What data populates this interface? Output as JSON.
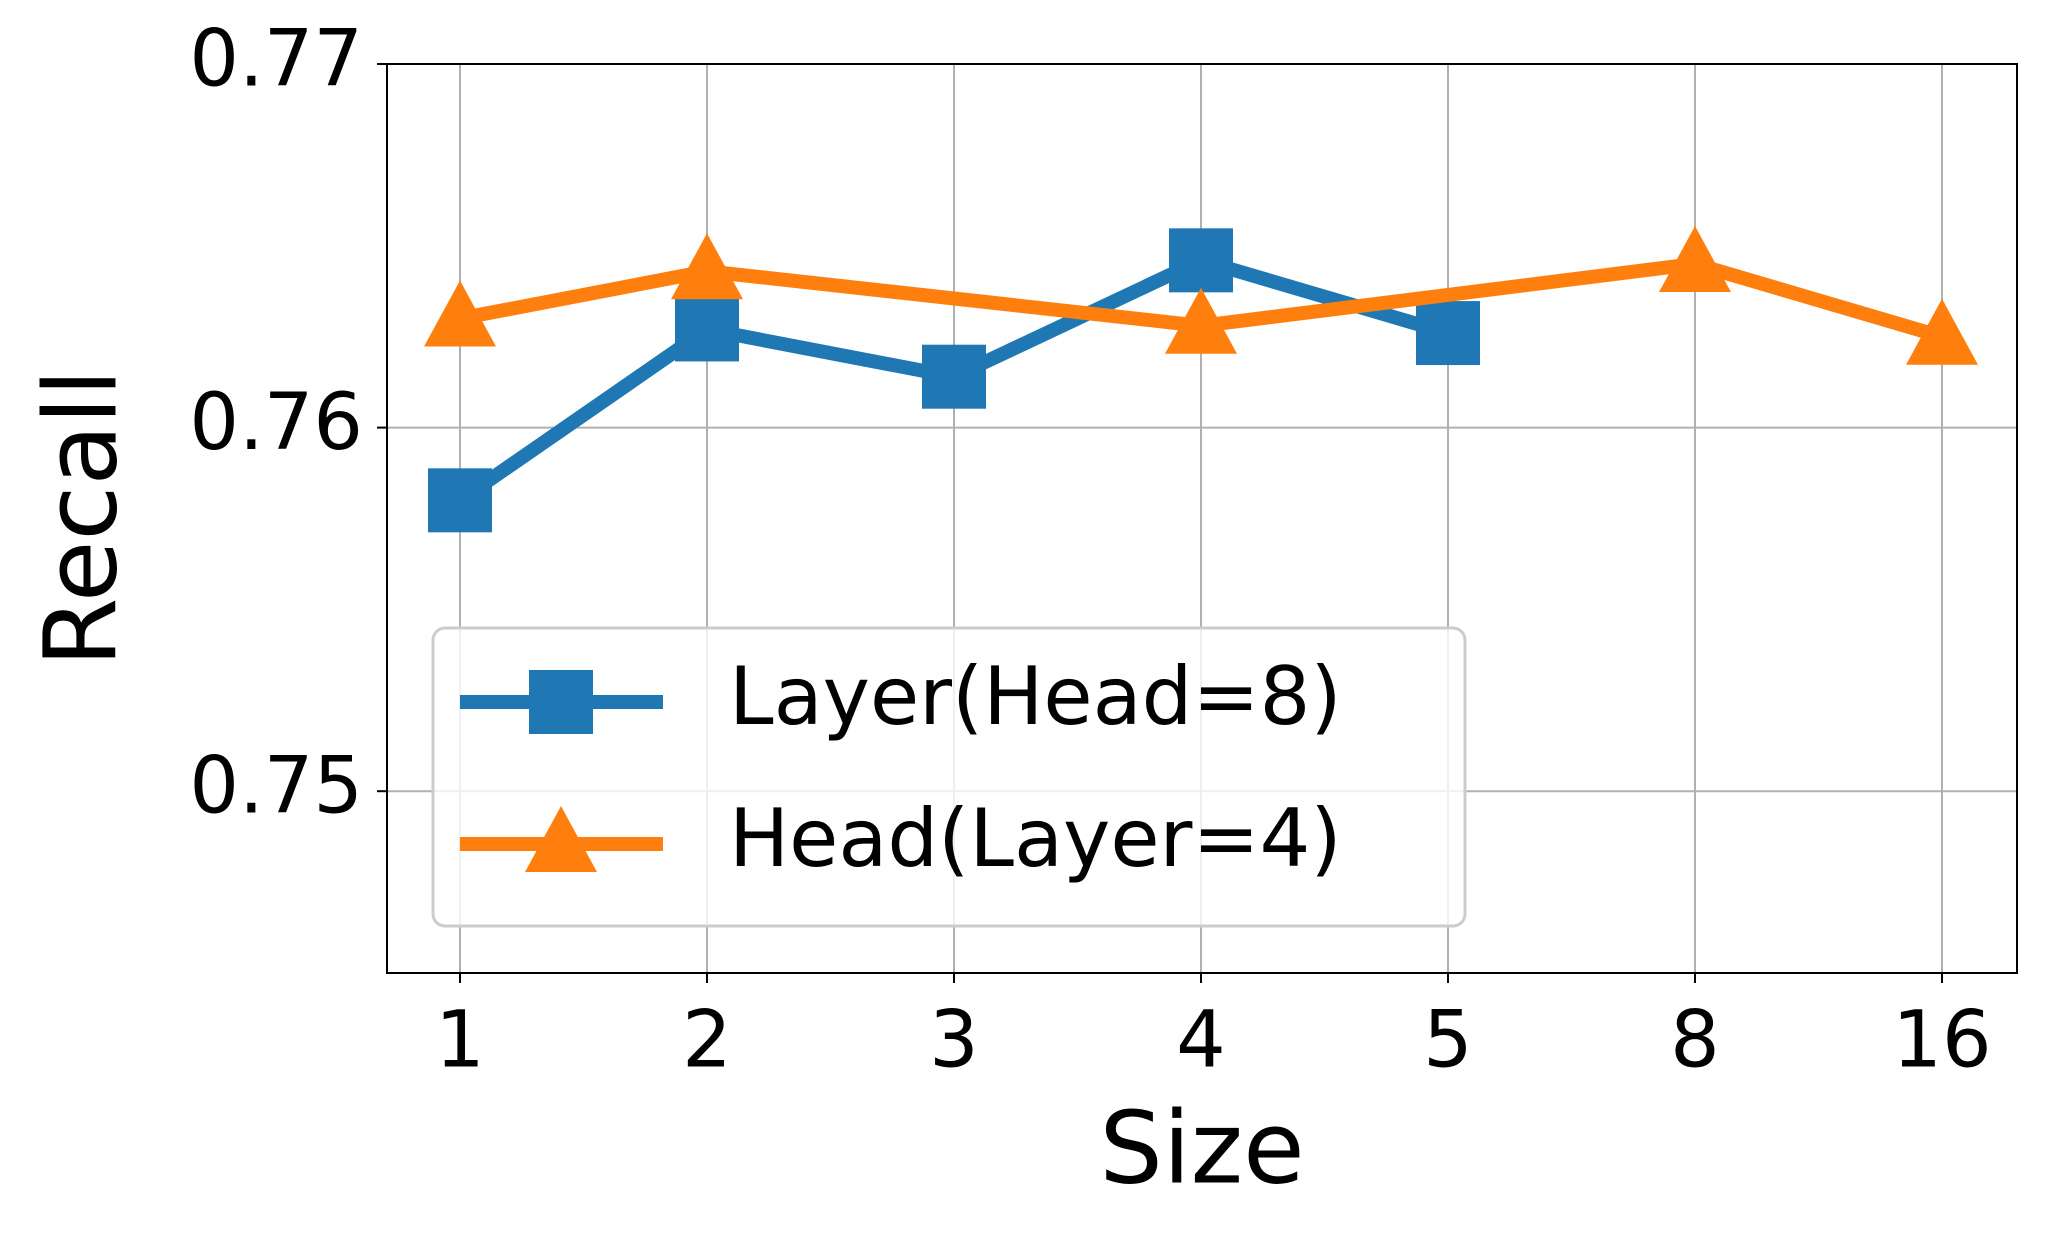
{
  "chart_data": {
    "type": "line",
    "x_label": "Size",
    "y_label": "Recall",
    "categories": [
      "1",
      "2",
      "3",
      "4",
      "5",
      "8",
      "16"
    ],
    "series": [
      {
        "name": "Layer(Head=8)",
        "color": "#1f77b4",
        "marker": "square",
        "x": [
          "1",
          "2",
          "3",
          "4",
          "5"
        ],
        "values": [
          0.758,
          0.7627,
          0.7614,
          0.7646,
          0.7626
        ]
      },
      {
        "name": "Head(Layer=4)",
        "color": "#ff7f0e",
        "marker": "triangle",
        "x": [
          "1",
          "2",
          "4",
          "8",
          "16"
        ],
        "values": [
          0.763,
          0.7643,
          0.7628,
          0.7645,
          0.7625
        ]
      }
    ],
    "ylim": [
      0.745,
      0.77
    ],
    "yticks": [
      0.75,
      0.76,
      0.77
    ],
    "grid": true,
    "legend": "lower left"
  }
}
